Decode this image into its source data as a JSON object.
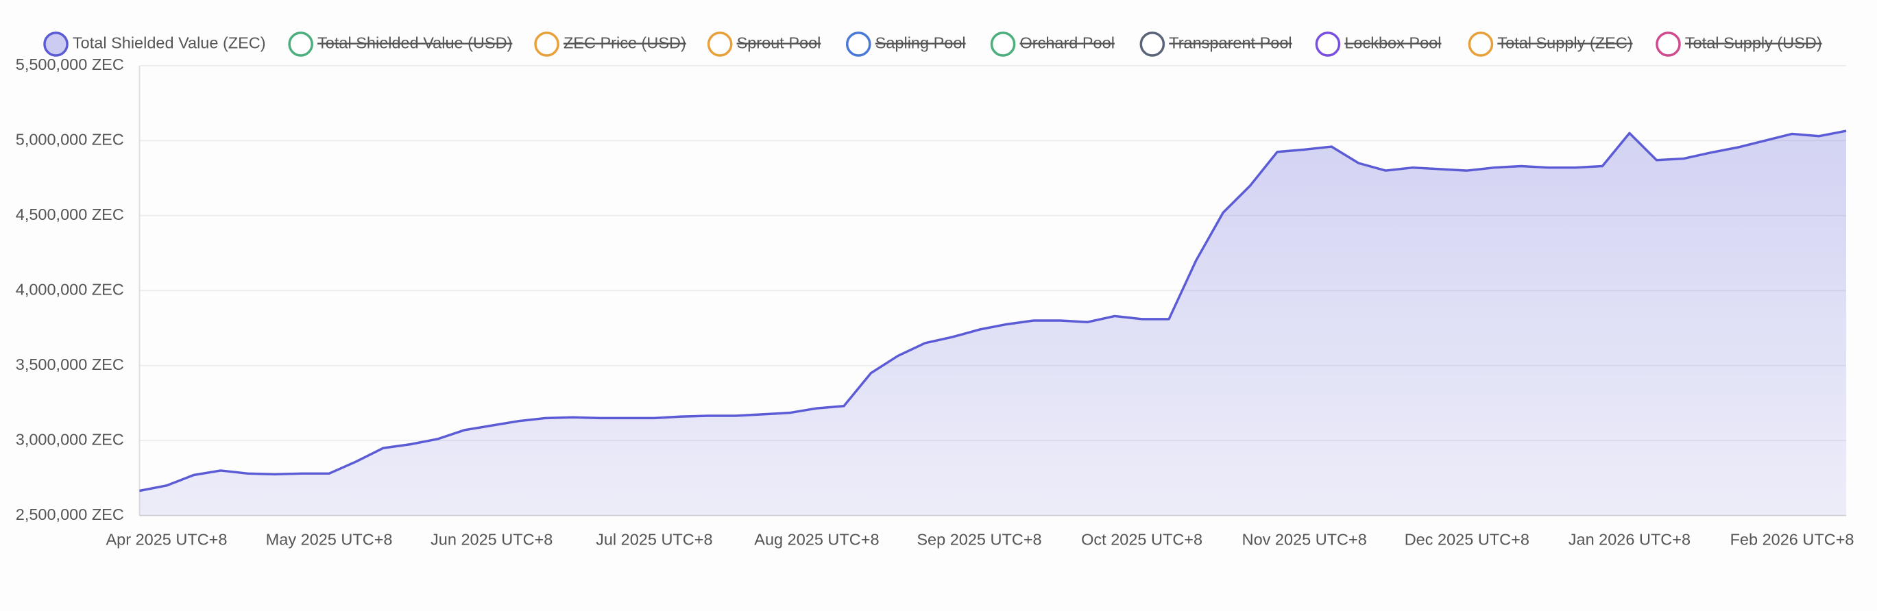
{
  "chart_data": {
    "type": "area",
    "categories": [
      null,
      "Apr 2025 UTC+8",
      null,
      null,
      null,
      null,
      null,
      "May 2025 UTC+8",
      null,
      null,
      null,
      null,
      null,
      "Jun 2025 UTC+8",
      null,
      null,
      null,
      null,
      null,
      "Jul 2025 UTC+8",
      null,
      null,
      null,
      null,
      null,
      "Aug 2025 UTC+8",
      null,
      null,
      null,
      null,
      null,
      "Sep 2025 UTC+8",
      null,
      null,
      null,
      null,
      null,
      "Oct 2025 UTC+8",
      null,
      null,
      null,
      null,
      null,
      "Nov 2025 UTC+8",
      null,
      null,
      null,
      null,
      null,
      "Dec 2025 UTC+8",
      null,
      null,
      null,
      null,
      null,
      "Jan 2026 UTC+8",
      null,
      null,
      null,
      null,
      null,
      "Feb 2026 UTC+8",
      null,
      null
    ],
    "series": [
      {
        "name": "Total Shielded Value (ZEC)",
        "color": "#5b5bd6",
        "hidden": false,
        "values": [
          2665000,
          2700000,
          2770000,
          2800000,
          2780000,
          2775000,
          2780000,
          2780000,
          2860000,
          2950000,
          2975000,
          3010000,
          3070000,
          3100000,
          3130000,
          3150000,
          3155000,
          3150000,
          3150000,
          3150000,
          3160000,
          3165000,
          3165000,
          3175000,
          3185000,
          3215000,
          3230000,
          3450000,
          3565000,
          3650000,
          3690000,
          3740000,
          3775000,
          3800000,
          3800000,
          3790000,
          3830000,
          3810000,
          3810000,
          4200000,
          4520000,
          4700000,
          4925000,
          4940000,
          4960000,
          4850000,
          4800000,
          4820000,
          4810000,
          4800000,
          4820000,
          4830000,
          4820000,
          4820000,
          4830000,
          5050000,
          4870000,
          4880000,
          4920000,
          4955000,
          5000000,
          5045000,
          5030000,
          5065000
        ]
      },
      {
        "name": "Total Shielded Value (USD)",
        "color": "#4caf7d",
        "hidden": true
      },
      {
        "name": "ZEC Price (USD)",
        "color": "#e8a03a",
        "hidden": true
      },
      {
        "name": "Sprout Pool",
        "color": "#e8a03a",
        "hidden": true
      },
      {
        "name": "Sapling Pool",
        "color": "#4a78d8",
        "hidden": true
      },
      {
        "name": "Orchard Pool",
        "color": "#4caf7d",
        "hidden": true
      },
      {
        "name": "Transparent Pool",
        "color": "#5a6478",
        "hidden": true
      },
      {
        "name": "Lockbox Pool",
        "color": "#7a4fe0",
        "hidden": true
      },
      {
        "name": "Total Supply (ZEC)",
        "color": "#e8a03a",
        "hidden": true
      },
      {
        "name": "Total Supply (USD)",
        "color": "#d04a8f",
        "hidden": true
      }
    ],
    "ylim": [
      2500000,
      5500000
    ],
    "yticks": [
      {
        "value": 2500000,
        "label": "2,500,000 ZEC"
      },
      {
        "value": 3000000,
        "label": "3,000,000 ZEC"
      },
      {
        "value": 3500000,
        "label": "3,500,000 ZEC"
      },
      {
        "value": 4000000,
        "label": "4,000,000 ZEC"
      },
      {
        "value": 4500000,
        "label": "4,500,000 ZEC"
      },
      {
        "value": 5000000,
        "label": "5,000,000 ZEC"
      },
      {
        "value": 5500000,
        "label": "5,500,000 ZEC"
      }
    ],
    "grid": true,
    "legend": "top"
  }
}
